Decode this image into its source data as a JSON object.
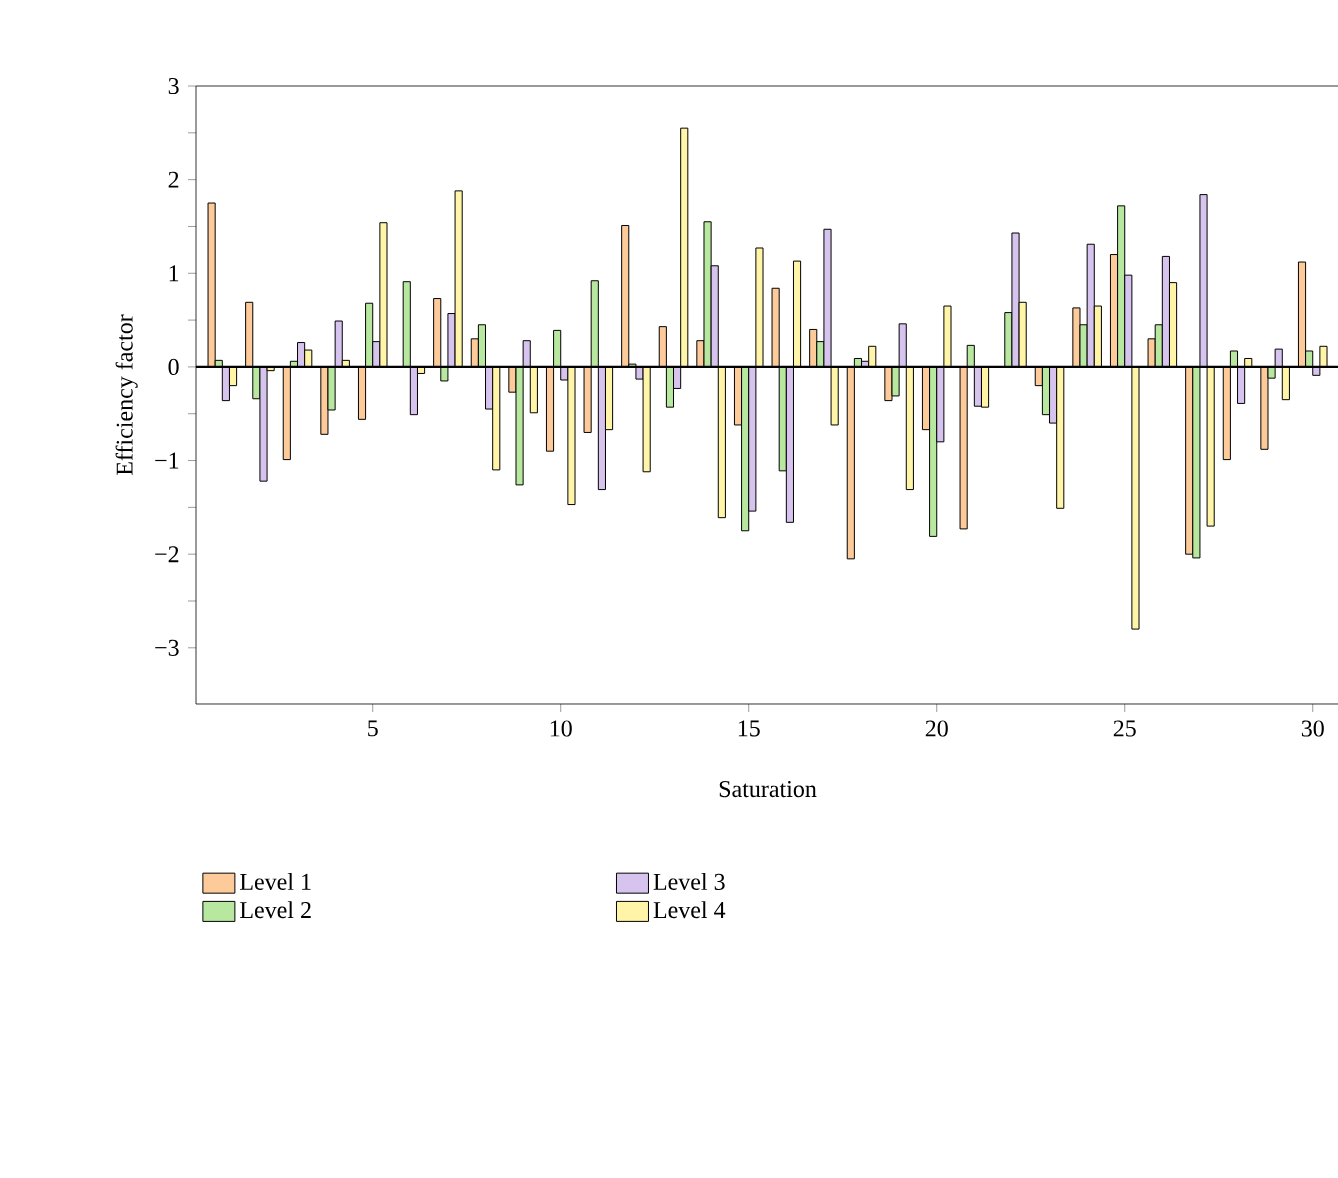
{
  "chart_data": {
    "type": "bar",
    "xlabel": "Saturation",
    "ylabel": "Efficiency factor",
    "x": [
      1,
      2,
      3,
      4,
      5,
      6,
      7,
      8,
      9,
      10,
      11,
      12,
      13,
      14,
      15,
      16,
      17,
      18,
      19,
      20,
      21,
      22,
      23,
      24,
      25,
      26,
      27,
      28,
      29,
      30
    ],
    "series": [
      {
        "name": "Level 1",
        "color": "#fdca9a",
        "values": [
          1.75,
          0.69,
          -0.99,
          -0.72,
          -0.56,
          null,
          0.73,
          0.3,
          -0.27,
          -0.9,
          -0.7,
          1.51,
          0.43,
          0.28,
          -0.62,
          0.84,
          0.4,
          -2.05,
          -0.36,
          -0.67,
          -1.73,
          null,
          -0.2,
          0.63,
          1.2,
          0.3,
          -2.0,
          -0.99,
          -0.88,
          1.12
        ]
      },
      {
        "name": "Level 2",
        "color": "#b8e8a0",
        "values": [
          0.07,
          -0.34,
          0.06,
          -0.46,
          0.68,
          0.91,
          -0.15,
          0.45,
          -1.26,
          0.39,
          0.92,
          0.03,
          -0.43,
          1.55,
          -1.75,
          -1.11,
          0.27,
          0.09,
          -0.31,
          -1.81,
          0.23,
          0.58,
          -0.51,
          0.45,
          1.72,
          0.45,
          -2.04,
          0.17,
          -0.12,
          0.17
        ]
      },
      {
        "name": "Level 3",
        "color": "#d6c4ee",
        "values": [
          -0.36,
          -1.22,
          0.26,
          0.49,
          0.27,
          -0.51,
          0.57,
          -0.45,
          0.28,
          -0.14,
          -1.31,
          -0.13,
          -0.23,
          1.08,
          -1.54,
          -1.66,
          1.47,
          0.06,
          0.46,
          -0.8,
          -0.42,
          1.43,
          -0.6,
          1.31,
          0.98,
          1.18,
          1.84,
          -0.39,
          0.19,
          -0.09
        ]
      },
      {
        "name": "Level 4",
        "color": "#fff4a8",
        "values": [
          -0.2,
          -0.04,
          0.18,
          0.07,
          1.54,
          -0.07,
          1.88,
          -1.1,
          -0.49,
          -1.47,
          -0.67,
          -1.12,
          2.55,
          -1.61,
          1.27,
          1.13,
          -0.62,
          0.22,
          -1.31,
          0.65,
          -0.43,
          0.69,
          -1.51,
          0.65,
          -2.8,
          0.9,
          -1.7,
          0.09,
          -0.35,
          0.22
        ]
      }
    ],
    "xlim": [
      0.3,
      30.7
    ],
    "ylim": [
      -3.6,
      3
    ],
    "xticks": [
      5,
      10,
      15,
      20,
      25,
      30
    ],
    "yticks": [
      {
        "value": -3,
        "label": "−3"
      },
      {
        "value": -2.5,
        "label": null
      },
      {
        "value": -2,
        "label": "−2"
      },
      {
        "value": -1.5,
        "label": null
      },
      {
        "value": -1,
        "label": "−1"
      },
      {
        "value": -0.5,
        "label": null
      },
      0,
      {
        "value": 0.5,
        "label": null
      },
      1,
      {
        "value": 1.5,
        "label": null
      },
      2,
      {
        "value": 2.5,
        "label": null
      },
      3
    ],
    "legend": "bottom"
  }
}
